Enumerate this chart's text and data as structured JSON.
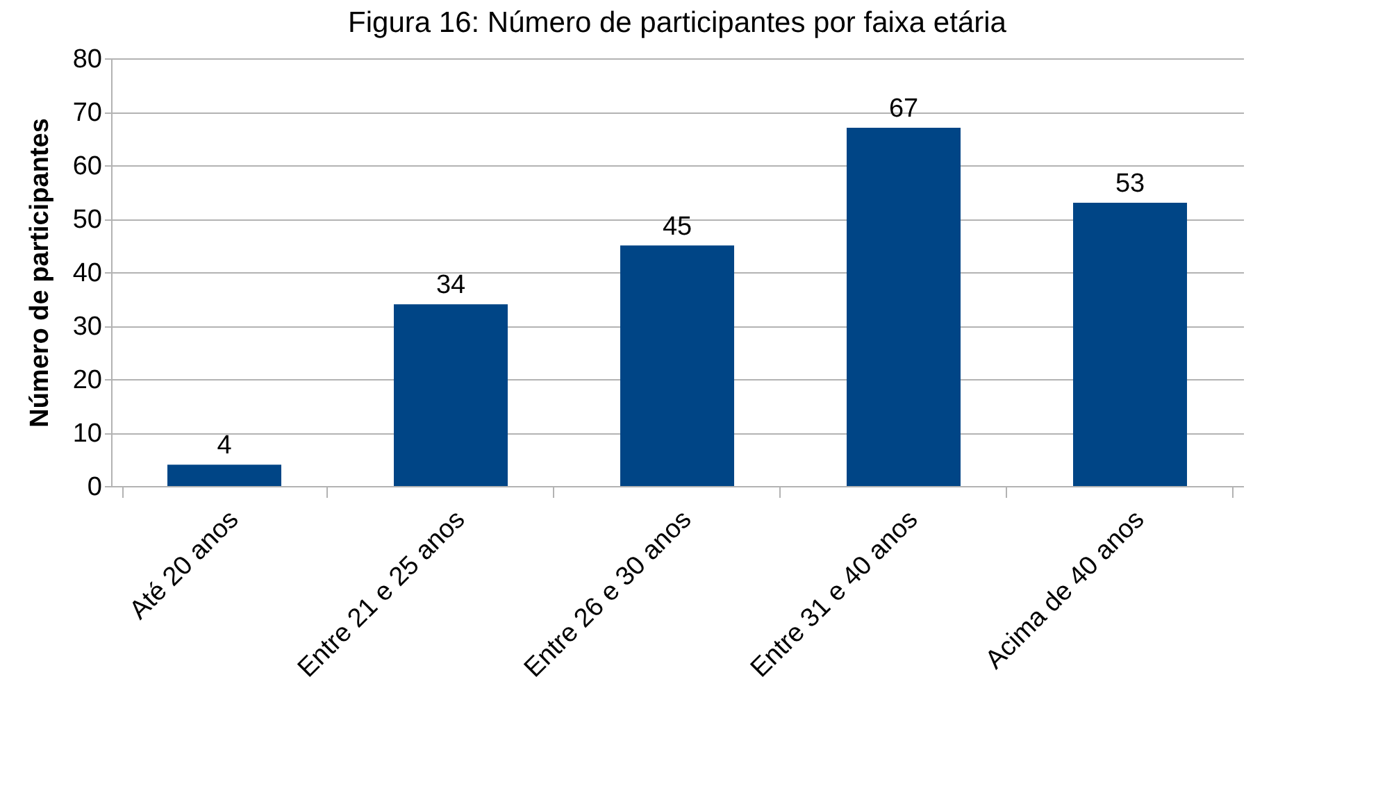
{
  "chart_data": {
    "type": "bar",
    "title": "Figura 16: Número de participantes por faixa etária",
    "ylabel": "Número de participantes",
    "categories": [
      "Até 20 anos",
      "Entre 21 e 25 anos",
      "Entre 26 e 30 anos",
      "Entre 31 e 40 anos",
      "Acima de 40 anos"
    ],
    "values": [
      4,
      34,
      45,
      67,
      53
    ],
    "color": "#004586",
    "ylim": [
      0,
      80
    ],
    "yticks": [
      0,
      10,
      20,
      30,
      40,
      50,
      60,
      70,
      80
    ],
    "grid": "y",
    "data_labels": true
  }
}
